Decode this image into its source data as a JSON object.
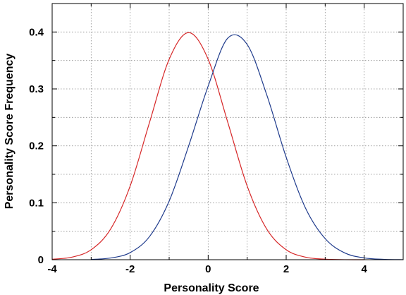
{
  "chart_data": {
    "type": "line",
    "title": "",
    "xlabel": "Personality Score",
    "ylabel": "Personality Score Frequency",
    "xlim": [
      -4,
      5
    ],
    "ylim": [
      0,
      0.45
    ],
    "x_ticks": [
      -4,
      -2,
      0,
      2,
      4
    ],
    "x_tick_labels": [
      "-4",
      "-2",
      "0",
      "2",
      "4"
    ],
    "y_ticks": [
      0,
      0.1,
      0.2,
      0.3,
      0.4
    ],
    "y_tick_labels": [
      "0",
      "0.1",
      "0.2",
      "0.3",
      "0.4"
    ],
    "grid": true,
    "legend": "none",
    "series": [
      {
        "color": "#d62728",
        "x": [
          -4.0,
          -3.5,
          -3.0,
          -2.5,
          -2.0,
          -1.5,
          -1.0,
          -0.5,
          0.0,
          0.5,
          1.0,
          1.5,
          2.0,
          2.5,
          3.0,
          3.5,
          4.0
        ],
        "y": [
          0.0009,
          0.0044,
          0.0175,
          0.054,
          0.1295,
          0.242,
          0.3521,
          0.3989,
          0.3521,
          0.242,
          0.1295,
          0.054,
          0.0175,
          0.0044,
          0.0009,
          0.0001,
          0.0
        ]
      },
      {
        "color": "#1f3b8c",
        "x": [
          -3.0,
          -2.5,
          -2.0,
          -1.5,
          -1.0,
          -0.5,
          0.0,
          0.5,
          1.0,
          1.5,
          2.0,
          2.5,
          3.0,
          3.5,
          4.0,
          4.5,
          5.0
        ],
        "y": [
          0.0005,
          0.003,
          0.0125,
          0.041,
          0.103,
          0.2,
          0.305,
          0.389,
          0.378,
          0.29,
          0.18,
          0.09,
          0.037,
          0.012,
          0.0032,
          0.0007,
          0.0001
        ]
      }
    ]
  }
}
